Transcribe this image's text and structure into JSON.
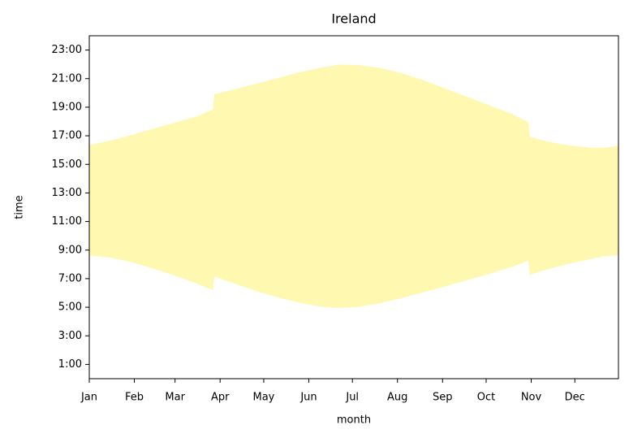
{
  "chart_data": {
    "type": "fill_between",
    "title": "Ireland",
    "xlabel": "month",
    "ylabel": "time",
    "color": "#fff8b0",
    "x": [
      0,
      15,
      30,
      45,
      60,
      75,
      85,
      86,
      100,
      115,
      130,
      145,
      160,
      172,
      185,
      200,
      215,
      230,
      245,
      260,
      275,
      290,
      302,
      303,
      315,
      330,
      345,
      355,
      364
    ],
    "y1": [
      8.63,
      8.47,
      8.13,
      7.68,
      7.17,
      6.62,
      6.2,
      7.15,
      6.65,
      6.13,
      5.68,
      5.3,
      5.03,
      4.95,
      5.03,
      5.28,
      5.65,
      6.05,
      6.47,
      6.9,
      7.33,
      7.8,
      8.25,
      7.27,
      7.65,
      8.05,
      8.38,
      8.57,
      8.65
    ],
    "y2": [
      16.35,
      16.67,
      17.08,
      17.52,
      17.95,
      18.38,
      18.85,
      19.9,
      20.25,
      20.65,
      21.05,
      21.45,
      21.78,
      21.98,
      21.95,
      21.75,
      21.38,
      20.88,
      20.3,
      19.72,
      19.13,
      18.55,
      17.95,
      16.93,
      16.6,
      16.32,
      16.17,
      16.17,
      16.3
    ],
    "xlim": [
      0,
      364
    ],
    "ylim": [
      0,
      24
    ],
    "xticks": [
      {
        "value": 0,
        "label": "Jan"
      },
      {
        "value": 31,
        "label": "Feb"
      },
      {
        "value": 59,
        "label": "Mar"
      },
      {
        "value": 90,
        "label": "Apr"
      },
      {
        "value": 120,
        "label": "May"
      },
      {
        "value": 151,
        "label": "Jun"
      },
      {
        "value": 181,
        "label": "Jul"
      },
      {
        "value": 212,
        "label": "Aug"
      },
      {
        "value": 243,
        "label": "Sep"
      },
      {
        "value": 273,
        "label": "Oct"
      },
      {
        "value": 304,
        "label": "Nov"
      },
      {
        "value": 334,
        "label": "Dec"
      }
    ],
    "yticks": [
      {
        "value": 1,
        "label": "1:00"
      },
      {
        "value": 3,
        "label": "3:00"
      },
      {
        "value": 5,
        "label": "5:00"
      },
      {
        "value": 7,
        "label": "7:00"
      },
      {
        "value": 9,
        "label": "9:00"
      },
      {
        "value": 11,
        "label": "11:00"
      },
      {
        "value": 13,
        "label": "13:00"
      },
      {
        "value": 15,
        "label": "15:00"
      },
      {
        "value": 17,
        "label": "17:00"
      },
      {
        "value": 19,
        "label": "19:00"
      },
      {
        "value": 21,
        "label": "21:00"
      },
      {
        "value": 23,
        "label": "23:00"
      }
    ]
  }
}
